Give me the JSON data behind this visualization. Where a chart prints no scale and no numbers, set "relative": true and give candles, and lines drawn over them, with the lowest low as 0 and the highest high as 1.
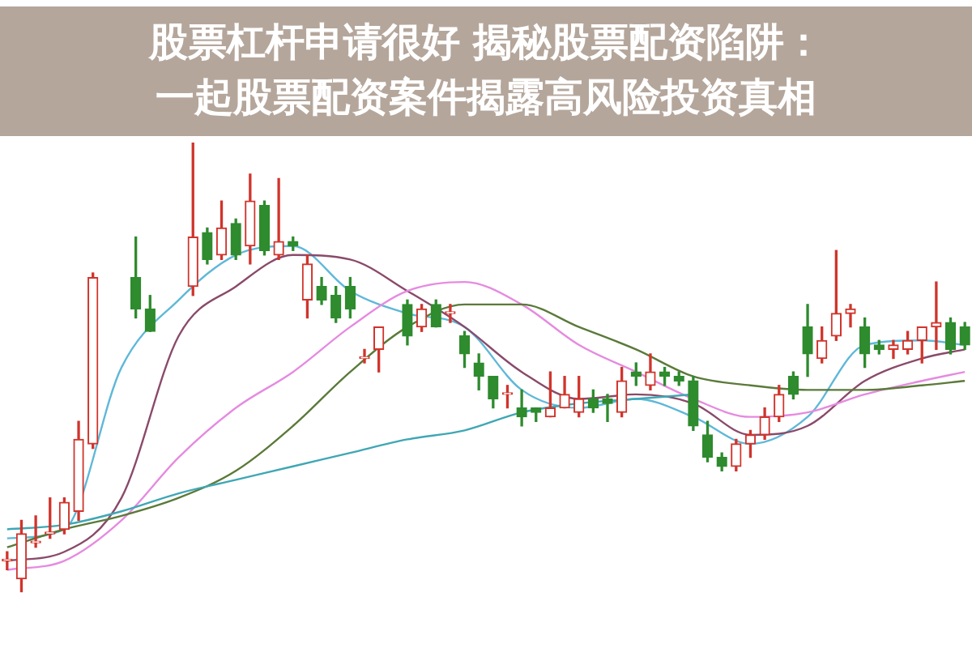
{
  "chart_data": {
    "type": "candlestick",
    "title": "股票杠杆申请很好 揭秘股票配资陷阱：一起股票配资案件揭露高风险投资真相",
    "relative": true,
    "legend": false,
    "marker": "none",
    "categories": [
      null,
      null,
      null,
      null,
      null,
      null,
      null,
      null,
      null,
      null,
      null,
      null,
      null,
      null,
      null,
      null,
      null,
      null,
      null,
      null,
      null,
      null,
      null,
      null,
      null,
      null,
      null,
      null,
      null,
      null,
      null,
      null,
      null,
      null,
      null,
      null,
      null,
      null,
      null,
      null,
      null,
      null,
      null,
      null,
      null,
      null,
      null,
      null,
      null,
      null,
      null,
      null,
      null,
      null,
      null,
      null,
      null,
      null,
      null,
      null,
      null,
      null,
      null,
      null,
      null,
      null,
      null,
      null
    ],
    "ohlc": [
      [
        0.07,
        0.09,
        0.05,
        0.07
      ],
      [
        0.03,
        0.16,
        0,
        0.13
      ],
      [
        0.11,
        0.17,
        0.1,
        0.11
      ],
      [
        0.13,
        0.21,
        0.12,
        0.13
      ],
      [
        0.14,
        0.21,
        0.13,
        0.2
      ],
      [
        0.18,
        0.38,
        0.16,
        0.34
      ],
      [
        0.33,
        0.71,
        0.32,
        0.7
      ],
      null,
      null,
      [
        0.7,
        0.79,
        0.61,
        0.63
      ],
      [
        0.63,
        0.66,
        0.58,
        0.58
      ],
      null,
      null,
      [
        0.68,
        1,
        0.66,
        0.79
      ],
      [
        0.8,
        0.81,
        0.73,
        0.74
      ],
      [
        0.75,
        0.87,
        0.74,
        0.81
      ],
      [
        0.82,
        0.83,
        0.74,
        0.75
      ],
      [
        0.77,
        0.93,
        0.73,
        0.87
      ],
      [
        0.86,
        0.87,
        0.75,
        0.76
      ],
      [
        0.75,
        0.92,
        0.74,
        0.78
      ],
      [
        0.78,
        0.79,
        0.76,
        0.77
      ],
      [
        0.65,
        0.75,
        0.61,
        0.73
      ],
      [
        0.68,
        0.7,
        0.64,
        0.65
      ],
      [
        0.66,
        0.68,
        0.6,
        0.61
      ],
      [
        0.68,
        0.7,
        0.61,
        0.63
      ],
      [
        0.52,
        0.54,
        0.51,
        0.52
      ],
      [
        0.54,
        0.59,
        0.49,
        0.59
      ],
      null,
      [
        0.64,
        0.65,
        0.55,
        0.57
      ],
      [
        0.59,
        0.64,
        0.58,
        0.63
      ],
      [
        0.64,
        0.65,
        0.59,
        0.59
      ],
      [
        0.62,
        0.64,
        0.6,
        0.62
      ],
      [
        0.57,
        0.58,
        0.5,
        0.53
      ],
      [
        0.51,
        0.53,
        0.45,
        0.48
      ],
      [
        0.48,
        0.48,
        0.41,
        0.43
      ],
      [
        0.44,
        0.46,
        0.41,
        0.44
      ],
      [
        0.41,
        0.45,
        0.37,
        0.39
      ],
      [
        0.41,
        0.41,
        0.38,
        0.4
      ],
      [
        0.39,
        0.49,
        0.39,
        0.41
      ],
      [
        0.41,
        0.48,
        0.41,
        0.44
      ],
      [
        0.4,
        0.48,
        0.39,
        0.43
      ],
      [
        0.43,
        0.45,
        0.4,
        0.41
      ],
      [
        0.43,
        0.44,
        0.38,
        0.42
      ],
      [
        0.4,
        0.5,
        0.39,
        0.47
      ],
      [
        0.49,
        0.51,
        0.46,
        0.48
      ],
      [
        0.46,
        0.53,
        0.45,
        0.49
      ],
      [
        0.49,
        0.5,
        0.46,
        0.48
      ],
      [
        0.48,
        0.49,
        0.46,
        0.47
      ],
      [
        0.47,
        0.48,
        0.36,
        0.37
      ],
      [
        0.35,
        0.38,
        0.29,
        0.3
      ],
      [
        0.3,
        0.31,
        0.27,
        0.28
      ],
      [
        0.28,
        0.34,
        0.27,
        0.33
      ],
      [
        0.33,
        0.36,
        0.3,
        0.35
      ],
      [
        0.35,
        0.41,
        0.34,
        0.39
      ],
      [
        0.39,
        0.46,
        0.38,
        0.44
      ],
      [
        0.48,
        0.49,
        0.43,
        0.44
      ],
      [
        0.59,
        0.64,
        0.48,
        0.53
      ],
      [
        0.52,
        0.59,
        0.51,
        0.56
      ],
      [
        0.57,
        0.76,
        0.56,
        0.62
      ],
      [
        0.62,
        0.64,
        0.59,
        0.63
      ],
      [
        0.59,
        0.61,
        0.5,
        0.53
      ],
      [
        0.55,
        0.56,
        0.53,
        0.54
      ],
      [
        0.54,
        0.56,
        0.52,
        0.55
      ],
      [
        0.54,
        0.58,
        0.53,
        0.56
      ],
      [
        0.56,
        0.59,
        0.51,
        0.59
      ],
      [
        0.59,
        0.69,
        0.54,
        0.6
      ],
      [
        0.6,
        0.61,
        0.53,
        0.54
      ],
      [
        0.59,
        0.6,
        0.54,
        0.55
      ]
    ],
    "series": [
      {
        "type": "line",
        "color": "#3fa7b5",
        "values": [
          0.14,
          null,
          null,
          null,
          0.15,
          null,
          null,
          null,
          0.18,
          null,
          null,
          null,
          0.22,
          null,
          null,
          null,
          0.25,
          null,
          null,
          null,
          0.28,
          null,
          null,
          null,
          0.31,
          null,
          null,
          null,
          0.34,
          null,
          null,
          null,
          0.36,
          null,
          null,
          null,
          0.4,
          null,
          null,
          null,
          0.42,
          null,
          null,
          null,
          0.43,
          null,
          null,
          null,
          0.44,
          null,
          null,
          null,
          null,
          null,
          null,
          null,
          null,
          null,
          null,
          null,
          null,
          null,
          null,
          null,
          null,
          null,
          null,
          null
        ]
      },
      {
        "type": "line",
        "color": "#5b7a3a",
        "values": [
          0.1,
          null,
          null,
          null,
          0.14,
          null,
          null,
          null,
          0.17,
          null,
          null,
          null,
          0.21,
          null,
          null,
          null,
          0.27,
          null,
          null,
          null,
          0.37,
          null,
          null,
          null,
          0.49,
          null,
          null,
          null,
          0.59,
          null,
          null,
          null,
          0.64,
          null,
          null,
          null,
          0.64,
          null,
          null,
          null,
          0.59,
          null,
          null,
          null,
          0.54,
          null,
          null,
          null,
          0.48,
          null,
          null,
          null,
          0.46,
          null,
          null,
          null,
          0.45,
          null,
          null,
          null,
          0.45,
          null,
          null,
          null,
          0.46,
          null,
          null,
          0.47
        ]
      },
      {
        "type": "line",
        "color": "#e58be0",
        "values": [
          0.05,
          null,
          null,
          null,
          0.07,
          null,
          null,
          null,
          0.16,
          null,
          null,
          null,
          0.3,
          null,
          null,
          null,
          0.41,
          null,
          null,
          null,
          0.49,
          null,
          null,
          null,
          0.59,
          null,
          null,
          null,
          0.67,
          null,
          null,
          null,
          0.69,
          null,
          null,
          null,
          0.64,
          null,
          null,
          null,
          0.55,
          null,
          null,
          null,
          0.49,
          null,
          null,
          null,
          0.43,
          null,
          null,
          null,
          0.39,
          null,
          null,
          null,
          0.4,
          null,
          null,
          null,
          0.44,
          null,
          null,
          null,
          0.47,
          null,
          null,
          0.49
        ]
      },
      {
        "type": "line",
        "color": "#8a4a6a",
        "values": [
          0.07,
          null,
          null,
          null,
          0.09,
          null,
          null,
          null,
          0.21,
          null,
          null,
          null,
          0.57,
          null,
          null,
          null,
          0.68,
          null,
          null,
          null,
          0.75,
          null,
          null,
          null,
          0.74,
          null,
          null,
          null,
          0.67,
          null,
          null,
          null,
          0.59,
          null,
          null,
          null,
          0.49,
          null,
          null,
          null,
          0.43,
          null,
          null,
          null,
          0.44,
          null,
          null,
          null,
          0.42,
          null,
          null,
          null,
          0.35,
          null,
          null,
          null,
          0.37,
          null,
          null,
          null,
          0.47,
          null,
          null,
          null,
          0.52,
          null,
          null,
          0.54
        ]
      },
      {
        "type": "line",
        "color": "#5fb8d8",
        "values": [
          0.12,
          null,
          null,
          null,
          0.14,
          null,
          null,
          null,
          0.5,
          null,
          null,
          null,
          0.65,
          null,
          null,
          null,
          0.75,
          null,
          null,
          null,
          0.77,
          null,
          null,
          null,
          0.67,
          null,
          null,
          null,
          0.62,
          null,
          null,
          null,
          0.59,
          null,
          null,
          null,
          0.45,
          null,
          null,
          null,
          0.41,
          null,
          null,
          null,
          0.43,
          null,
          null,
          null,
          0.39,
          null,
          null,
          null,
          0.33,
          null,
          null,
          null,
          0.39,
          null,
          null,
          null,
          0.55,
          null,
          null,
          null,
          0.56,
          null,
          null,
          0.55
        ]
      }
    ]
  }
}
